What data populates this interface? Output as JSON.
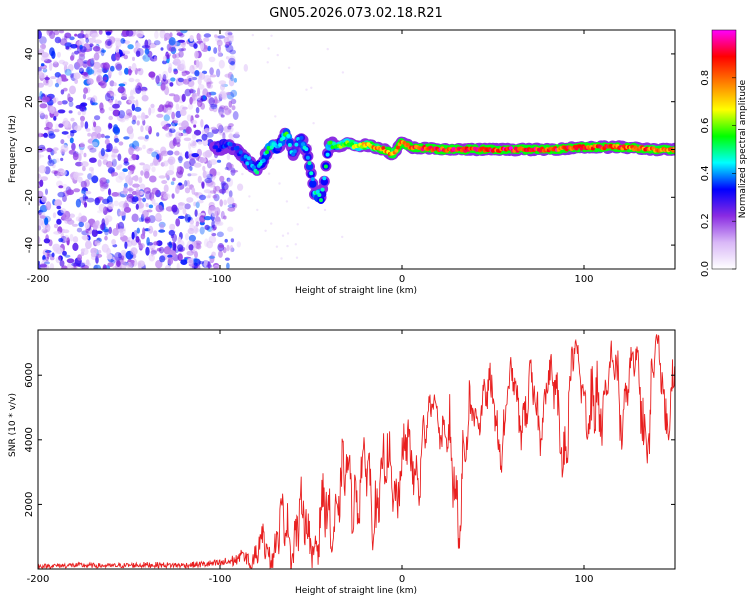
{
  "title": "GN05.2026.073.02.18.R21",
  "chart_data": [
    {
      "type": "heatmap",
      "title": "GN05.2026.073.02.18.R21",
      "xlabel": "Height of straight line (km)",
      "ylabel": "Frequency (Hz)",
      "xlim": [
        -200,
        150
      ],
      "ylim": [
        -50,
        50
      ],
      "xticks": [
        "-200",
        "-100",
        "0",
        "100"
      ],
      "yticks": [
        "-40",
        "-20",
        "0",
        "20",
        "40"
      ],
      "noise_region_km": [
        -200,
        -92
      ],
      "signal_track": {
        "x_km": [
          -103,
          -97,
          -92,
          -88,
          -84,
          -80,
          -76,
          -72,
          -68,
          -64,
          -60,
          -56,
          -52,
          -48,
          -44,
          -40,
          -35,
          -30,
          -25,
          -20,
          -15,
          -10,
          -5,
          0,
          5,
          20,
          40,
          60,
          80,
          100,
          120,
          140,
          150
        ],
        "freq_hz": [
          0,
          2,
          1,
          -3,
          -5,
          -9,
          -4,
          2,
          1,
          8,
          -2,
          5,
          -1,
          -18,
          -20,
          2,
          1,
          3,
          1,
          2,
          1,
          0,
          -2,
          3,
          1,
          0,
          0,
          0,
          0,
          1,
          1,
          0,
          0
        ],
        "amplitude": [
          0.35,
          0.4,
          0.35,
          0.4,
          0.45,
          0.5,
          0.5,
          0.6,
          0.45,
          0.6,
          0.4,
          0.45,
          0.5,
          0.5,
          0.5,
          0.55,
          0.6,
          0.65,
          0.7,
          0.75,
          0.8,
          0.85,
          0.8,
          0.9,
          0.9,
          0.95,
          0.95,
          0.95,
          0.95,
          0.9,
          0.9,
          0.85,
          0.85
        ]
      },
      "colorbar": {
        "label": "Normalized spectral amplitude",
        "range": [
          0,
          1
        ],
        "ticks": [
          "0.0",
          "0.2",
          "0.4",
          "0.6",
          "0.8"
        ],
        "colors": [
          "#ffffff",
          "#d9b8f7",
          "#8a2be2",
          "#0000ff",
          "#00ffff",
          "#00ff00",
          "#ffff00",
          "#ff8000",
          "#ff0000",
          "#ff00ff"
        ]
      }
    },
    {
      "type": "line",
      "xlabel": "Height of straight line (km)",
      "ylabel": "SNR (10 * v/v)",
      "xlim": [
        -200,
        150
      ],
      "ylim": [
        0,
        7400
      ],
      "xticks": [
        "-200",
        "-100",
        "0",
        "100"
      ],
      "yticks": [
        "2000",
        "4000",
        "6000"
      ],
      "color": "#e81f1f",
      "series": [
        {
          "name": "SNR",
          "x": [
            -200,
            -180,
            -160,
            -140,
            -120,
            -100,
            -90,
            -85,
            -80,
            -75,
            -70,
            -65,
            -60,
            -57,
            -55,
            -50,
            -45,
            -40,
            -35,
            -30,
            -25,
            -20,
            -15,
            -10,
            -5,
            0,
            5,
            10,
            15,
            18,
            20,
            25,
            30,
            35,
            40,
            45,
            50,
            55,
            60,
            65,
            70,
            75,
            80,
            85,
            90,
            95,
            100,
            105,
            110,
            115,
            120,
            125,
            130,
            135,
            140,
            145,
            150
          ],
          "y": [
            60,
            80,
            70,
            90,
            80,
            120,
            200,
            350,
            500,
            700,
            900,
            1100,
            1300,
            1500,
            1200,
            1000,
            1300,
            1500,
            2200,
            2600,
            2800,
            2500,
            2300,
            2900,
            2600,
            3300,
            3200,
            3500,
            4500,
            5400,
            4800,
            3300,
            2600,
            3700,
            4800,
            5500,
            4900,
            4200,
            5800,
            5000,
            5200,
            4700,
            5900,
            5000,
            4200,
            6700,
            5800,
            3900,
            5300,
            6500,
            4700,
            6400,
            5500,
            4600,
            6900,
            5200,
            6000
          ],
          "envelope": [
            150,
            200,
            170,
            220,
            200,
            300,
            500,
            800,
            1100,
            1500,
            1900,
            2200,
            2600,
            2900,
            2500,
            2200,
            2600,
            3000,
            3600,
            4000,
            4300,
            4100,
            3900,
            4300,
            4100,
            4700,
            4600,
            4900,
            5400,
            5600,
            5300,
            4900,
            4700,
            5300,
            5900,
            6200,
            6000,
            5600,
            6400,
            6100,
            6300,
            6000,
            6600,
            6300,
            6000,
            7200,
            6900,
            6200,
            6700,
            7100,
            6500,
            7100,
            6900,
            6600,
            7400,
            6800,
            7000
          ]
        }
      ]
    }
  ]
}
